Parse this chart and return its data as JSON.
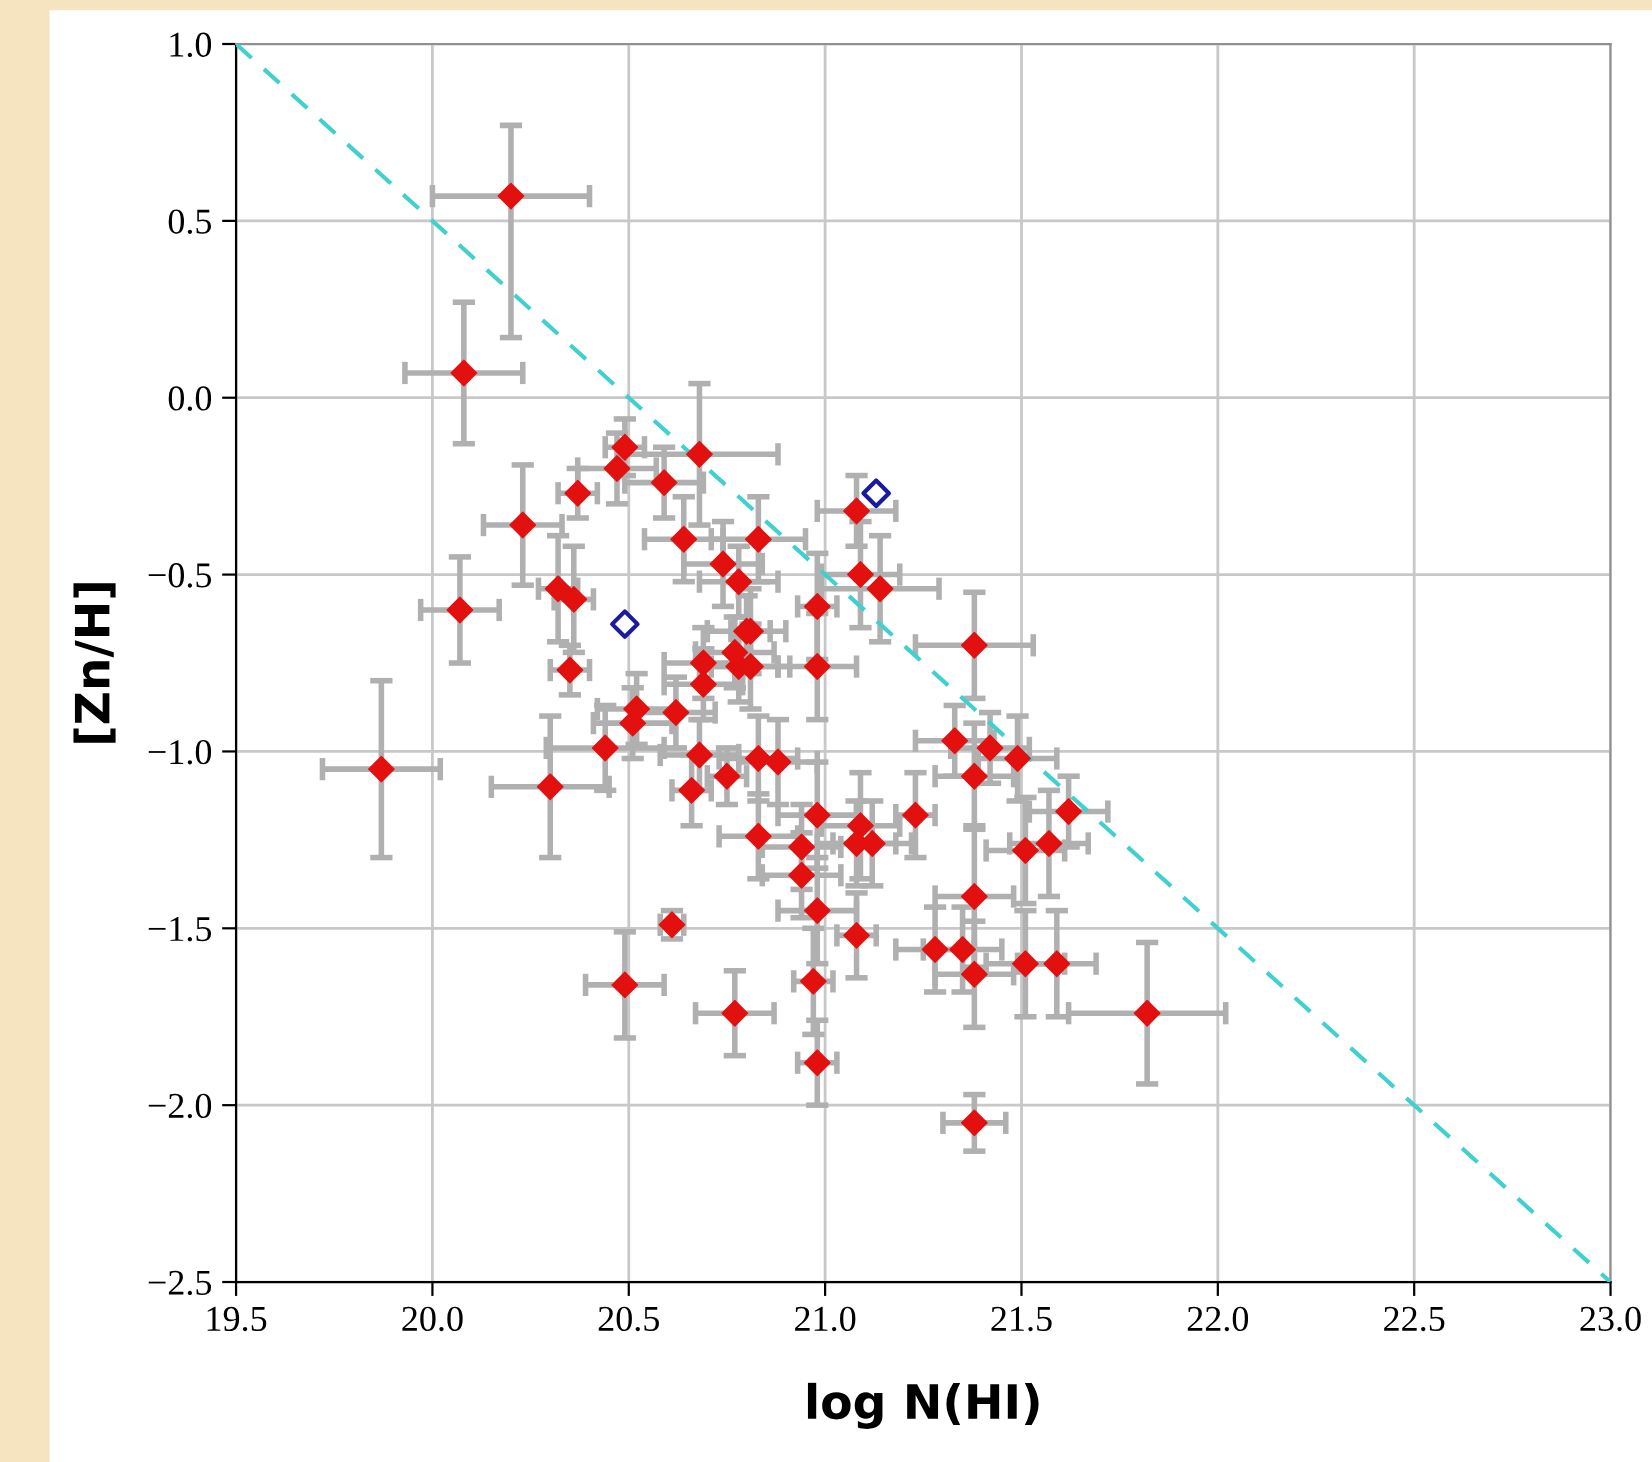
{
  "chart_data": {
    "type": "scatter",
    "xlabel": "log N(HI)",
    "ylabel": "[Zn/H]",
    "xlim": [
      19.5,
      23.0
    ],
    "xticks": [
      19.5,
      {
        "value": 20.0,
        "label": "20.0"
      },
      20.5,
      {
        "value": 21.0,
        "label": "21.0"
      },
      21.5,
      {
        "value": 22.0,
        "label": "22.0"
      },
      22.5,
      {
        "value": 23.0,
        "label": "23.0"
      }
    ],
    "ylim": [
      -2.5,
      1.0
    ],
    "yticks": [
      {
        "value": -2.5,
        "label": "−2.5"
      },
      {
        "value": -2.0,
        "label": "−2.0"
      },
      {
        "value": -1.5,
        "label": "−1.5"
      },
      {
        "value": -1.0,
        "label": "−1.0"
      },
      {
        "value": -0.5,
        "label": "−0.5"
      },
      {
        "value": 0.0,
        "label": "0.0"
      },
      {
        "value": 0.5,
        "label": "0.5"
      },
      {
        "value": 1.0,
        "label": "1.0"
      }
    ],
    "grid": true,
    "marker": "diamond",
    "series": [
      {
        "type": "line",
        "color": "#40d0d0",
        "line_style": "dashed",
        "marker": "none",
        "x": [
          19.5,
          23.0
        ],
        "values": [
          1.0,
          -2.5
        ]
      },
      {
        "color": "#e31010",
        "x": [
          20.2,
          20.08,
          19.87,
          20.07,
          20.23,
          20.3,
          20.37,
          20.47,
          20.49,
          20.59,
          20.68,
          20.64,
          20.74,
          20.78,
          20.32,
          20.36,
          20.83,
          21.08,
          21.09,
          21.14,
          20.98,
          20.81,
          20.78,
          20.81,
          20.98,
          21.38,
          21.33,
          21.42,
          21.49,
          21.38,
          21.62,
          21.57,
          21.51,
          21.23,
          20.98,
          21.09,
          21.08,
          21.12,
          20.83,
          20.94,
          20.94,
          20.98,
          21.08,
          21.28,
          21.35,
          21.38,
          21.38,
          21.51,
          21.59,
          21.82,
          20.97,
          20.98,
          21.38,
          20.77,
          20.83,
          20.88,
          20.35,
          20.44,
          20.51,
          20.52,
          20.62,
          20.69,
          20.69,
          20.68,
          20.66,
          20.75,
          20.77,
          20.8,
          20.61,
          20.49
        ],
        "values": [
          0.57,
          0.07,
          -1.05,
          -0.6,
          -0.36,
          -1.1,
          -0.27,
          -0.2,
          -0.14,
          -0.24,
          -0.16,
          -0.4,
          -0.47,
          -0.52,
          -0.54,
          -0.57,
          -0.4,
          -0.32,
          -0.5,
          -0.54,
          -0.59,
          -0.66,
          -0.76,
          -0.76,
          -0.76,
          -0.7,
          -0.97,
          -0.99,
          -1.02,
          -1.07,
          -1.17,
          -1.26,
          -1.28,
          -1.18,
          -1.18,
          -1.21,
          -1.26,
          -1.26,
          -1.24,
          -1.27,
          -1.35,
          -1.45,
          -1.52,
          -1.56,
          -1.56,
          -1.41,
          -1.63,
          -1.6,
          -1.6,
          -1.74,
          -1.65,
          -1.88,
          -2.05,
          -1.74,
          -1.02,
          -1.03,
          -0.77,
          -0.99,
          -0.92,
          -0.88,
          -0.89,
          -0.75,
          -0.81,
          -1.01,
          -1.11,
          -1.07,
          -0.72,
          -0.66,
          -1.49,
          -1.66
        ],
        "errors": [
          [
            0.17,
            0.77
          ],
          0.2,
          0.25,
          0.15,
          0.17,
          0.2,
          0.07,
          0.1,
          0.08,
          0.1,
          0.2,
          0.12,
          0.12,
          0.1,
          0.15,
          0.15,
          0.12,
          0.1,
          0.15,
          0.15,
          0.15,
          0.12,
          0.1,
          0.12,
          0.15,
          0.15,
          0.1,
          0.1,
          0.12,
          0.15,
          0.1,
          0.15,
          0.15,
          0.12,
          0.15,
          0.15,
          0.12,
          0.12,
          0.12,
          0.12,
          0.12,
          0.15,
          0.12,
          0.12,
          0.12,
          0.2,
          0.15,
          0.15,
          0.15,
          0.2,
          0.15,
          0.12,
          0.08,
          0.12,
          0.12,
          0.12,
          0.07,
          0.12,
          0.1,
          0.1,
          0.1,
          0.1,
          0.1,
          0.1,
          0.1,
          0.08,
          0.1,
          0.1,
          0.04,
          0.15
        ],
        "xerrors": [
          0.2,
          0.15,
          0.15,
          0.1,
          0.1,
          0.15,
          0.05,
          0.1,
          0.05,
          0.1,
          0.2,
          0.1,
          0.1,
          0.1,
          0.05,
          0.05,
          0.12,
          0.1,
          0.1,
          0.15,
          0.05,
          0.05,
          0.1,
          0.1,
          0.1,
          0.15,
          0.1,
          0.1,
          0.1,
          0.1,
          0.1,
          0.1,
          0.1,
          0.05,
          0.1,
          0.1,
          0.1,
          0.1,
          0.1,
          0.1,
          0.1,
          0.1,
          0.05,
          0.1,
          0.1,
          0.1,
          0.1,
          0.1,
          0.1,
          0.2,
          0.05,
          0.05,
          0.08,
          0.1,
          0.1,
          0.1,
          0.05,
          0.15,
          0.1,
          0.1,
          0.1,
          0.1,
          0.1,
          0.1,
          0.05,
          0.05,
          0.1,
          0.1,
          0.03,
          0.1
        ]
      },
      {
        "color": "#1a1aa0",
        "x": [
          20.49,
          21.13
        ],
        "values": [
          -0.64,
          -0.27
        ]
      }
    ]
  }
}
